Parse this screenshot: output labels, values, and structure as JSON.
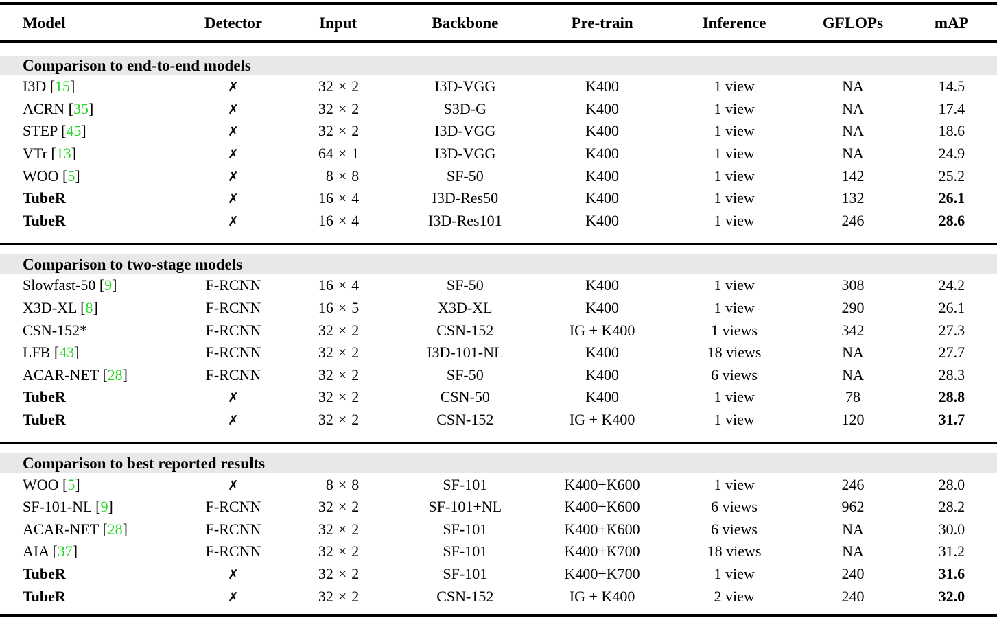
{
  "table": {
    "columns": [
      "Model",
      "Detector",
      "Input",
      "Backbone",
      "Pre-train",
      "Inference",
      "GFLOPs",
      "mAP"
    ],
    "citation_color": "#1dd61d",
    "band_color": "#e8e8e8",
    "cross_glyph": "✗",
    "sections": [
      {
        "title": "Comparison to end-to-end models",
        "rows": [
          {
            "name": "I3D",
            "cite": "15",
            "detector": "✗",
            "input": "32 × 2",
            "backbone": "I3D-VGG",
            "pretrain": "K400",
            "inference": "1 view",
            "gflops": "NA",
            "map": "14.5",
            "highlight": false
          },
          {
            "name": "ACRN",
            "cite": "35",
            "detector": "✗",
            "input": "32 × 2",
            "backbone": "S3D-G",
            "pretrain": "K400",
            "inference": "1 view",
            "gflops": "NA",
            "map": "17.4",
            "highlight": false
          },
          {
            "name": "STEP",
            "cite": "45",
            "detector": "✗",
            "input": "32 × 2",
            "backbone": "I3D-VGG",
            "pretrain": "K400",
            "inference": "1 view",
            "gflops": "NA",
            "map": "18.6",
            "highlight": false
          },
          {
            "name": "VTr",
            "cite": "13",
            "detector": "✗",
            "input": "64 × 1",
            "backbone": "I3D-VGG",
            "pretrain": "K400",
            "inference": "1 view",
            "gflops": "NA",
            "map": "24.9",
            "highlight": false
          },
          {
            "name": "WOO",
            "cite": "5",
            "detector": "✗",
            "input": "8 × 8",
            "backbone": "SF-50",
            "pretrain": "K400",
            "inference": "1 view",
            "gflops": "142",
            "map": "25.2",
            "highlight": false
          },
          {
            "name": "TubeR",
            "cite": null,
            "detector": "✗",
            "input": "16 × 4",
            "backbone": "I3D-Res50",
            "pretrain": "K400",
            "inference": "1 view",
            "gflops": "132",
            "map": "26.1",
            "highlight": true
          },
          {
            "name": "TubeR",
            "cite": null,
            "detector": "✗",
            "input": "16 × 4",
            "backbone": "I3D-Res101",
            "pretrain": "K400",
            "inference": "1 view",
            "gflops": "246",
            "map": "28.6",
            "highlight": true
          }
        ]
      },
      {
        "title": "Comparison to two-stage models",
        "rows": [
          {
            "name": "Slowfast-50",
            "cite": "9",
            "detector": "F-RCNN",
            "input": "16 × 4",
            "backbone": "SF-50",
            "pretrain": "K400",
            "inference": "1 view",
            "gflops": "308",
            "map": "24.2",
            "highlight": false
          },
          {
            "name": "X3D-XL",
            "cite": "8",
            "detector": "F-RCNN",
            "input": "16 × 5",
            "backbone": "X3D-XL",
            "pretrain": "K400",
            "inference": "1 view",
            "gflops": "290",
            "map": "26.1",
            "highlight": false
          },
          {
            "name": "CSN-152*",
            "cite": null,
            "detector": "F-RCNN",
            "input": "32 × 2",
            "backbone": "CSN-152",
            "pretrain": "IG + K400",
            "inference": "1 views",
            "gflops": "342",
            "map": "27.3",
            "highlight": false
          },
          {
            "name": "LFB",
            "cite": "43",
            "detector": "F-RCNN",
            "input": "32 × 2",
            "backbone": "I3D-101-NL",
            "pretrain": "K400",
            "inference": "18 views",
            "gflops": "NA",
            "map": "27.7",
            "highlight": false
          },
          {
            "name": "ACAR-NET",
            "cite": "28",
            "detector": "F-RCNN",
            "input": "32 × 2",
            "backbone": "SF-50",
            "pretrain": "K400",
            "inference": "6 views",
            "gflops": "NA",
            "map": "28.3",
            "highlight": false
          },
          {
            "name": "TubeR",
            "cite": null,
            "detector": "✗",
            "input": "32 × 2",
            "backbone": "CSN-50",
            "pretrain": "K400",
            "inference": "1 view",
            "gflops": "78",
            "map": "28.8",
            "highlight": true
          },
          {
            "name": "TubeR",
            "cite": null,
            "detector": "✗",
            "input": "32 × 2",
            "backbone": "CSN-152",
            "pretrain": "IG + K400",
            "inference": "1 view",
            "gflops": "120",
            "map": "31.7",
            "highlight": true
          }
        ]
      },
      {
        "title": "Comparison to best reported results",
        "rows": [
          {
            "name": "WOO",
            "cite": "5",
            "detector": "✗",
            "input": "8 × 8",
            "backbone": "SF-101",
            "pretrain": "K400+K600",
            "inference": "1 view",
            "gflops": "246",
            "map": "28.0",
            "highlight": false
          },
          {
            "name": "SF-101-NL",
            "cite": "9",
            "detector": "F-RCNN",
            "input": "32 × 2",
            "backbone": "SF-101+NL",
            "pretrain": "K400+K600",
            "inference": "6 views",
            "gflops": "962",
            "map": "28.2",
            "highlight": false
          },
          {
            "name": "ACAR-NET",
            "cite": "28",
            "detector": "F-RCNN",
            "input": "32 × 2",
            "backbone": "SF-101",
            "pretrain": "K400+K600",
            "inference": "6 views",
            "gflops": "NA",
            "map": "30.0",
            "highlight": false
          },
          {
            "name": "AIA",
            "cite": "37",
            "detector": "F-RCNN",
            "input": "32 × 2",
            "backbone": "SF-101",
            "pretrain": "K400+K700",
            "inference": "18 views",
            "gflops": "NA",
            "map": "31.2",
            "highlight": false
          },
          {
            "name": "TubeR",
            "cite": null,
            "detector": "✗",
            "input": "32 × 2",
            "backbone": "SF-101",
            "pretrain": "K400+K700",
            "inference": "1 view",
            "gflops": "240",
            "map": "31.6",
            "highlight": true
          },
          {
            "name": "TubeR",
            "cite": null,
            "detector": "✗",
            "input": "32 × 2",
            "backbone": "CSN-152",
            "pretrain": "IG + K400",
            "inference": "2 view",
            "gflops": "240",
            "map": "32.0",
            "highlight": true
          }
        ]
      }
    ]
  }
}
